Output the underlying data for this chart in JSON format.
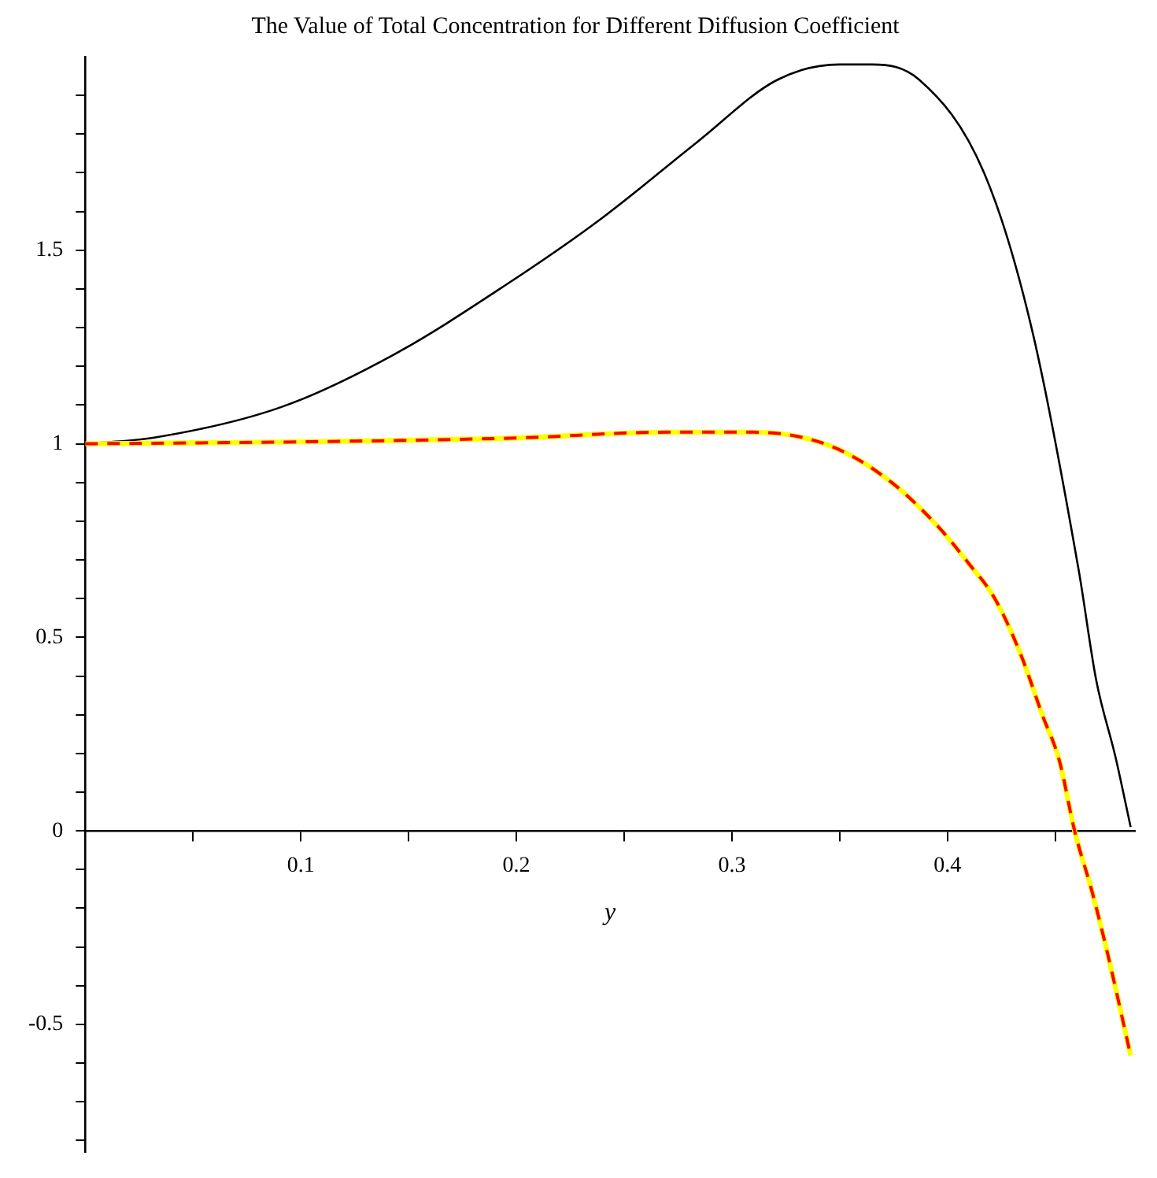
{
  "chart_data": {
    "type": "line",
    "title": "The Value of Total Concentration for Different Diffusion Coefficient",
    "xlabel": "y",
    "xlim": [
      0,
      0.487
    ],
    "ylim": [
      -0.83,
      2.0
    ],
    "xticks": [
      {
        "value": 0.05,
        "label": null
      },
      0.1,
      {
        "value": 0.15,
        "label": null
      },
      0.2,
      {
        "value": 0.25,
        "label": null
      },
      0.3,
      {
        "value": 0.35,
        "label": null
      },
      0.4,
      {
        "value": 0.45,
        "label": null
      }
    ],
    "yticks": [
      {
        "value": -0.8,
        "label": null
      },
      {
        "value": -0.7,
        "label": null
      },
      {
        "value": -0.6,
        "label": null
      },
      {
        "value": -0.5,
        "label": "-0.5"
      },
      {
        "value": -0.4,
        "label": null
      },
      {
        "value": -0.3,
        "label": null
      },
      {
        "value": -0.2,
        "label": null
      },
      {
        "value": -0.1,
        "label": null
      },
      0,
      {
        "value": 0.1,
        "label": null
      },
      {
        "value": 0.2,
        "label": null
      },
      {
        "value": 0.3,
        "label": null
      },
      {
        "value": 0.4,
        "label": null
      },
      0.5,
      {
        "value": 0.6,
        "label": null
      },
      {
        "value": 0.7,
        "label": null
      },
      {
        "value": 0.8,
        "label": null
      },
      {
        "value": 0.9,
        "label": null
      },
      1,
      {
        "value": 1.1,
        "label": null
      },
      {
        "value": 1.2,
        "label": null
      },
      {
        "value": 1.3,
        "label": null
      },
      {
        "value": 1.4,
        "label": null
      },
      1.5,
      {
        "value": 1.6,
        "label": null
      },
      {
        "value": 1.7,
        "label": null
      },
      {
        "value": 1.8,
        "label": null
      },
      {
        "value": 1.9,
        "label": null
      }
    ],
    "grid": false,
    "legend": false,
    "marker": "none",
    "series": [
      {
        "color": "#000000",
        "line_style": "solid",
        "x": [
          0,
          0.032,
          0.091,
          0.143,
          0.195,
          0.239,
          0.284,
          0.321,
          0.35,
          0.365,
          0.387,
          0.417,
          0.439,
          0.461,
          0.469,
          0.478,
          0.485
        ],
        "values": [
          1.0,
          1.016,
          1.095,
          1.23,
          1.41,
          1.58,
          1.78,
          1.94,
          1.98,
          1.98,
          1.94,
          1.7,
          1.3,
          0.67,
          0.39,
          0.19,
          0.01
        ]
      },
      {
        "color": "#ffff00",
        "line_style": "solid",
        "x": [
          0,
          0.1,
          0.2,
          0.27,
          0.31,
          0.345,
          0.373,
          0.395,
          0.41,
          0.422,
          0.434,
          0.444,
          0.452,
          0.459,
          0.467,
          0.474,
          0.485
        ],
        "values": [
          1.0,
          1.005,
          1.015,
          1.03,
          1.03,
          0.996,
          0.905,
          0.79,
          0.69,
          0.6,
          0.456,
          0.3,
          0.18,
          0.0,
          -0.155,
          -0.31,
          -0.58
        ]
      },
      {
        "color": "#ff0000",
        "line_style": "dashed",
        "x": [
          0,
          0.1,
          0.2,
          0.27,
          0.31,
          0.345,
          0.373,
          0.395,
          0.41,
          0.422,
          0.434,
          0.444,
          0.452,
          0.459,
          0.467,
          0.474,
          0.485
        ],
        "values": [
          1.0,
          1.005,
          1.015,
          1.03,
          1.03,
          0.996,
          0.905,
          0.79,
          0.69,
          0.6,
          0.456,
          0.3,
          0.18,
          0.0,
          -0.155,
          -0.31,
          -0.58
        ]
      }
    ]
  }
}
